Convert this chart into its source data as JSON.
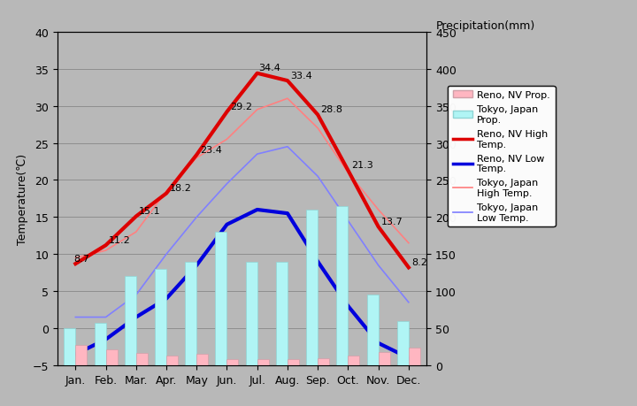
{
  "months": [
    "Jan.",
    "Feb.",
    "Mar.",
    "Apr.",
    "May",
    "Jun.",
    "Jul.",
    "Aug.",
    "Sep.",
    "Oct.",
    "Nov.",
    "Dec."
  ],
  "reno_high": [
    8.7,
    11.2,
    15.1,
    18.2,
    23.4,
    29.2,
    34.4,
    33.4,
    28.8,
    21.3,
    13.7,
    8.2
  ],
  "reno_low": [
    -3.5,
    -1.5,
    1.5,
    4.0,
    8.5,
    14.0,
    16.0,
    15.5,
    9.0,
    3.0,
    -2.0,
    -4.0
  ],
  "tokyo_high": [
    9.5,
    10.5,
    13.0,
    18.5,
    23.0,
    25.5,
    29.5,
    31.0,
    27.0,
    21.0,
    16.0,
    11.5
  ],
  "tokyo_low": [
    1.5,
    1.5,
    4.5,
    10.0,
    15.0,
    19.5,
    23.5,
    24.5,
    20.5,
    14.5,
    8.5,
    3.5
  ],
  "reno_precip_mm": [
    27,
    22,
    17,
    13,
    15,
    8,
    8,
    8,
    9,
    13,
    18,
    24
  ],
  "tokyo_precip_mm": [
    50,
    57,
    120,
    130,
    140,
    180,
    140,
    140,
    210,
    215,
    95,
    60
  ],
  "bg_color": "#b8b8b8",
  "plot_bg_color": "#b8b8b8",
  "ylim_left": [
    -5,
    40
  ],
  "ylim_right": [
    0,
    450
  ],
  "yticks_left": [
    -5,
    0,
    5,
    10,
    15,
    20,
    25,
    30,
    35,
    40
  ],
  "yticks_right": [
    0,
    50,
    100,
    150,
    200,
    250,
    300,
    350,
    400,
    450
  ],
  "reno_bar_color": "#ffb6c1",
  "tokyo_bar_color": "#b0f5f5",
  "reno_bar_edge": "#d0a0a8",
  "tokyo_bar_edge": "#90d5d5",
  "reno_high_color": "#dd0000",
  "reno_low_color": "#0000dd",
  "tokyo_high_color": "#ff8080",
  "tokyo_low_color": "#8080ff",
  "grid_color": "#888888",
  "label_fontsize": 9,
  "tick_fontsize": 9,
  "annot_fontsize": 8
}
